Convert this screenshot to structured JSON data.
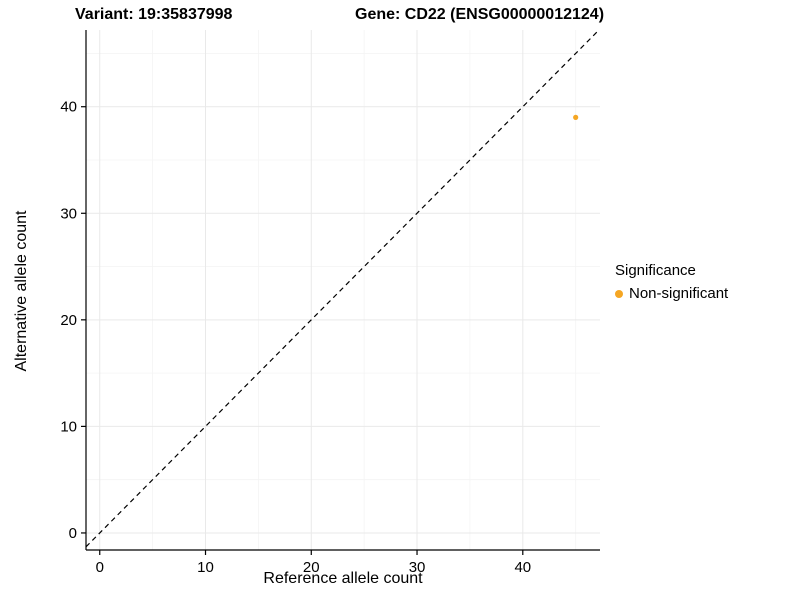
{
  "titles": {
    "variant": "Variant: 19:35837998",
    "gene": "Gene: CD22 (ENSG00000012124)"
  },
  "chart_data": {
    "type": "scatter",
    "xlabel": "Reference allele count",
    "ylabel": "Alternative allele count",
    "xlim": [
      -1.3,
      47.3
    ],
    "ylim": [
      -1.6,
      47.2
    ],
    "xticks": [
      0,
      10,
      20,
      30,
      40
    ],
    "yticks": [
      0,
      10,
      20,
      30,
      40
    ],
    "minor_xticks": [
      5,
      15,
      25,
      35,
      45
    ],
    "minor_yticks": [
      5,
      15,
      25,
      35,
      45
    ],
    "grid": true,
    "colors": {
      "major_grid": "#e9e9e9",
      "minor_grid": "#f4f4f4",
      "axis": "#000000",
      "point": "#f5a623"
    },
    "identity_line": {
      "style": "dashed",
      "from": [
        -1.3,
        -1.3
      ],
      "to": [
        47.2,
        47.2
      ],
      "color": "#000000"
    },
    "series": [
      {
        "name": "Non-significant",
        "color": "#f5a623",
        "points": [
          {
            "x": 45,
            "y": 39
          }
        ]
      }
    ],
    "legend": {
      "title": "Significance",
      "position": "right",
      "entries": [
        {
          "label": "Non-significant",
          "color": "#f5a623"
        }
      ]
    }
  }
}
